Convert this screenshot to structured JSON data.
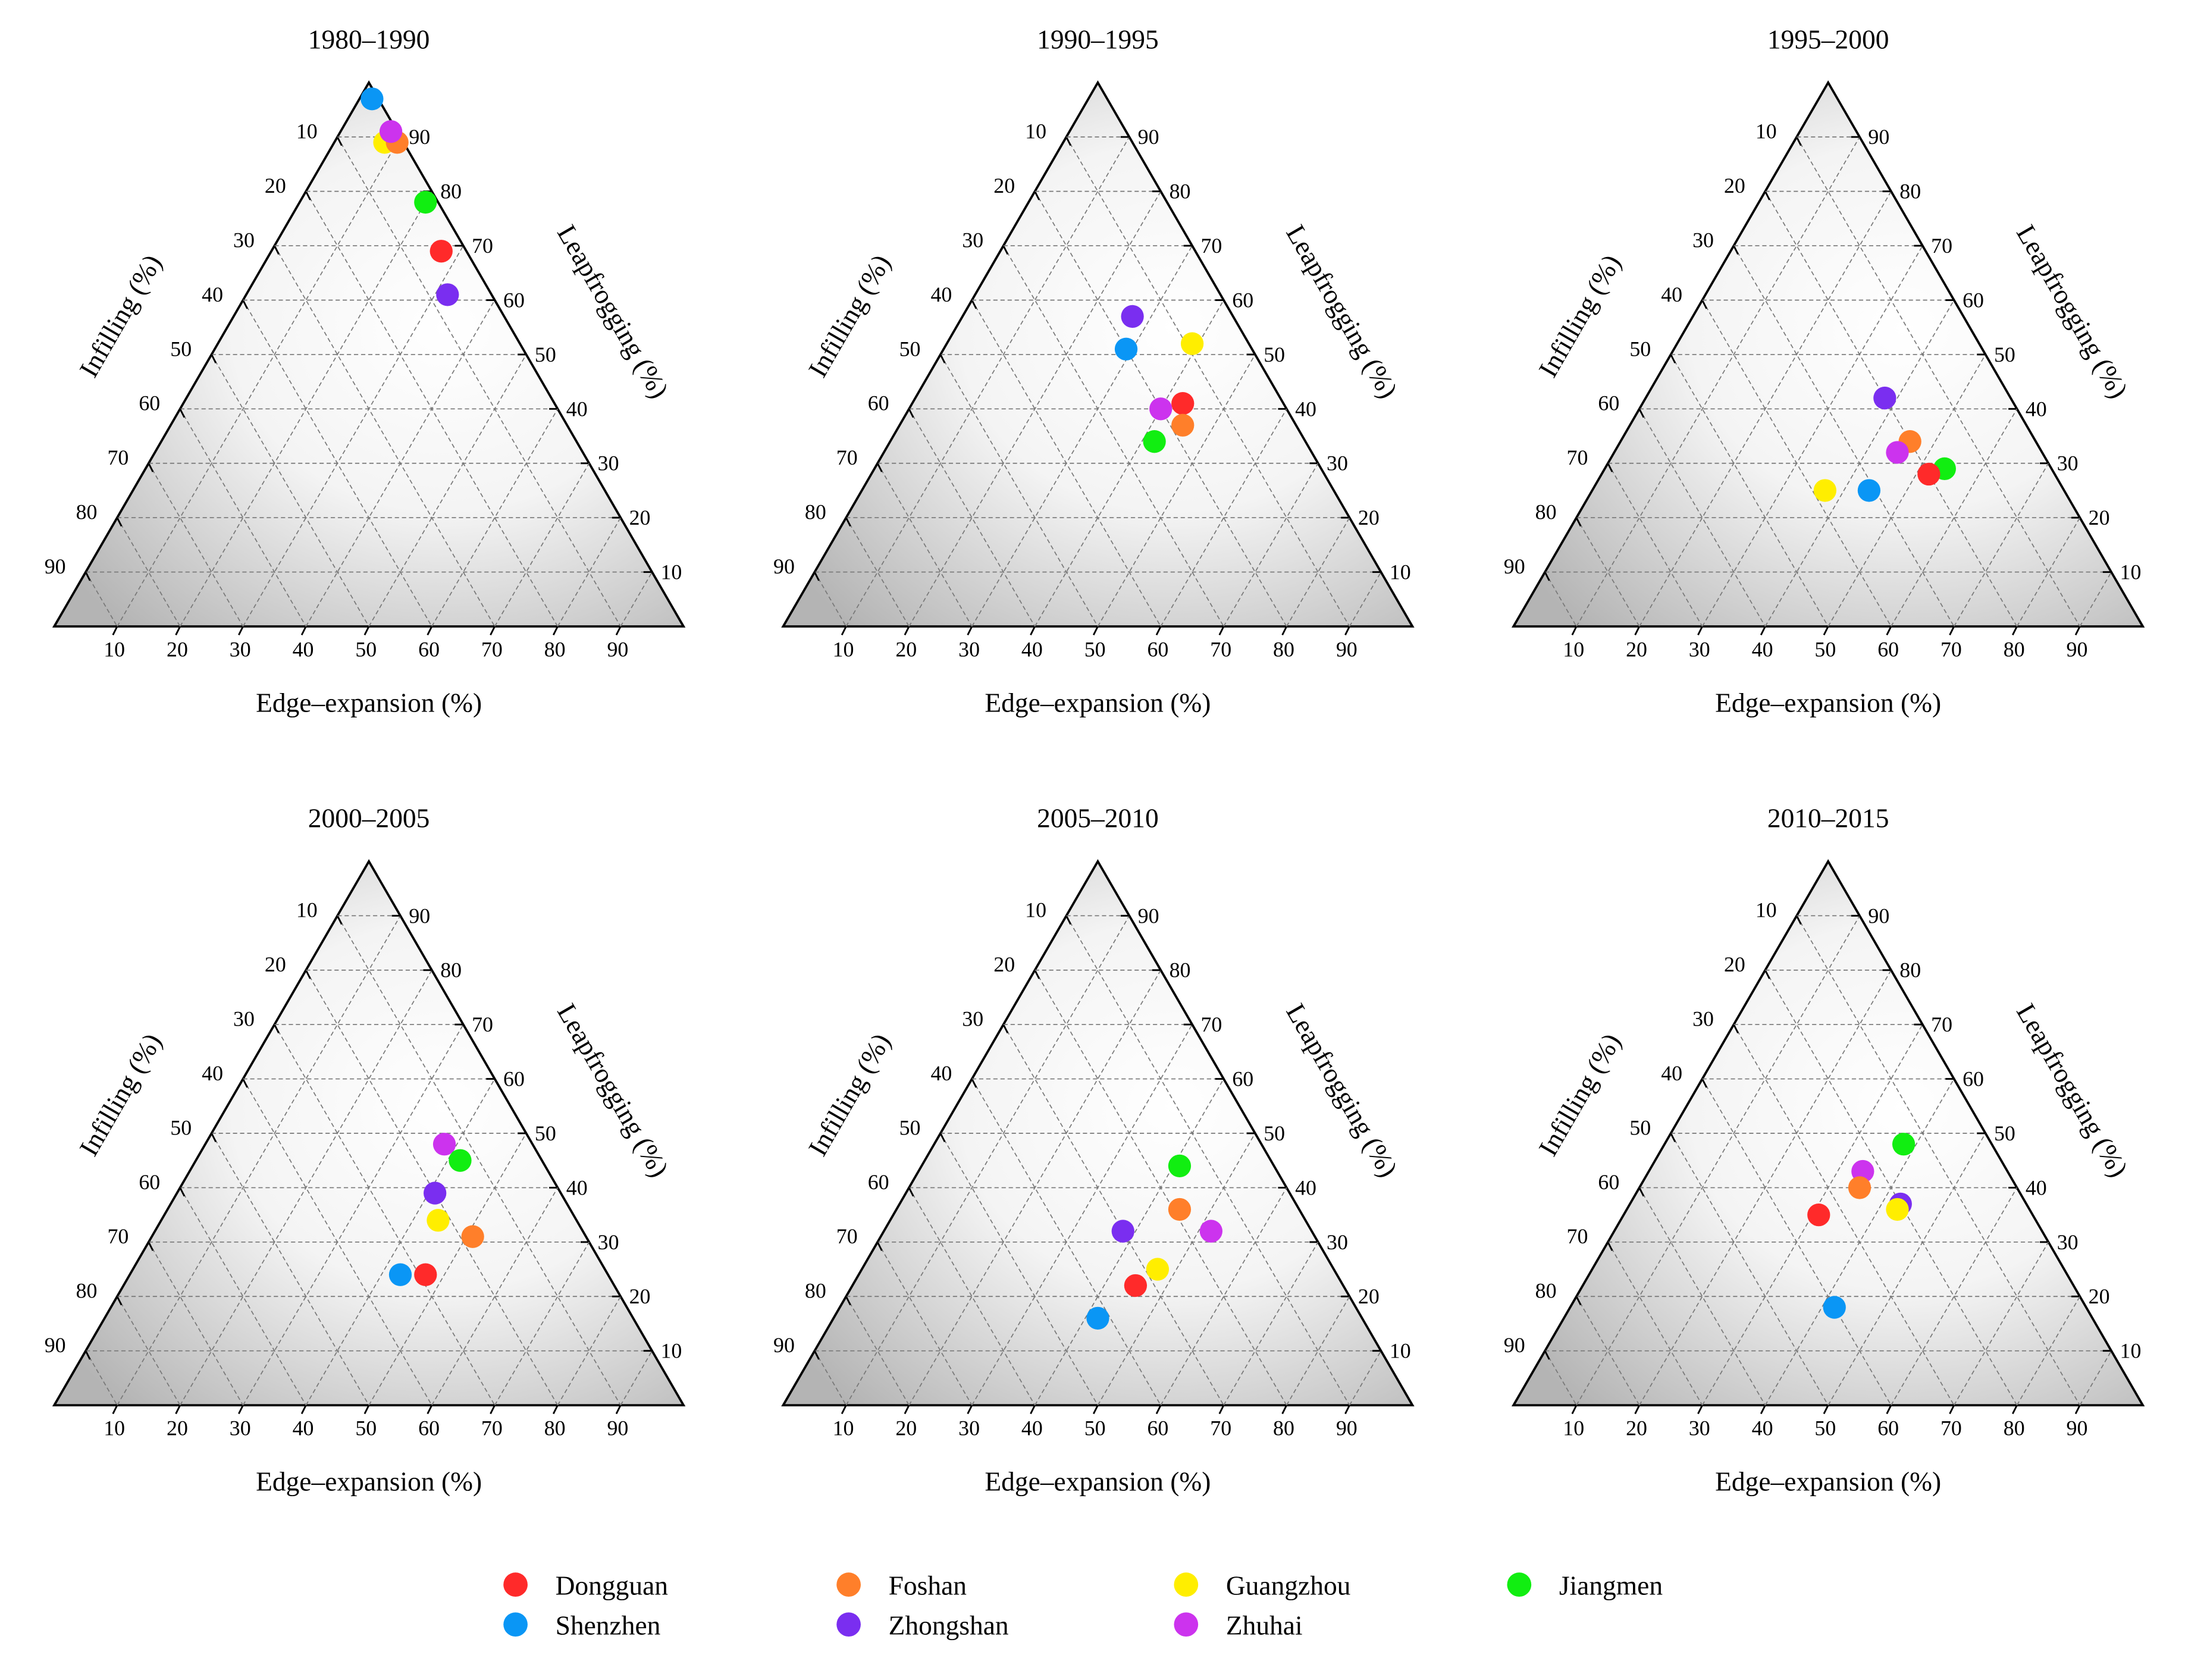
{
  "chart_data": {
    "type": "scatter",
    "subtype": "ternary",
    "axes": {
      "bottom": "Edge–expansion (%)",
      "left": "Infilling (%)",
      "right": "Leapfrogging (%)"
    },
    "ticks": [
      10,
      20,
      30,
      40,
      50,
      60,
      70,
      80,
      90
    ],
    "grid": true,
    "legend_placement": "bottom-center",
    "series_names": [
      "Dongguan",
      "Foshan",
      "Guangzhou",
      "Jiangmen",
      "Shenzhen",
      "Zhongshan",
      "Zhuhai"
    ],
    "colors": {
      "Dongguan": "#ff2a2a",
      "Foshan": "#ff7f2a",
      "Guangzhou": "#ffee00",
      "Jiangmen": "#11ee11",
      "Shenzhen": "#0a96f5",
      "Zhongshan": "#7a2ef0",
      "Zhuhai": "#cc33ee"
    },
    "legend": [
      {
        "name": "Dongguan"
      },
      {
        "name": "Foshan"
      },
      {
        "name": "Guangzhou"
      },
      {
        "name": "Jiangmen"
      },
      {
        "name": "Shenzhen"
      },
      {
        "name": "Zhongshan"
      },
      {
        "name": "Zhuhai"
      }
    ],
    "panels": [
      {
        "title": "1980–1990",
        "points": [
          {
            "city": "Shenzhen",
            "edge": 2,
            "infilling": 1,
            "leapfrogging": 97
          },
          {
            "city": "Guangzhou",
            "edge": 8,
            "infilling": 3,
            "leapfrogging": 89
          },
          {
            "city": "Foshan",
            "edge": 10,
            "infilling": 1,
            "leapfrogging": 89
          },
          {
            "city": "Zhuhai",
            "edge": 8,
            "infilling": 1,
            "leapfrogging": 91
          },
          {
            "city": "Jiangmen",
            "edge": 20,
            "infilling": 2,
            "leapfrogging": 78
          },
          {
            "city": "Dongguan",
            "edge": 27,
            "infilling": 4,
            "leapfrogging": 69
          },
          {
            "city": "Zhongshan",
            "edge": 32,
            "infilling": 7,
            "leapfrogging": 61
          }
        ]
      },
      {
        "title": "1990–1995",
        "points": [
          {
            "city": "Zhongshan",
            "edge": 27,
            "infilling": 16,
            "leapfrogging": 57
          },
          {
            "city": "Shenzhen",
            "edge": 29,
            "infilling": 20,
            "leapfrogging": 51
          },
          {
            "city": "Guangzhou",
            "edge": 39,
            "infilling": 9,
            "leapfrogging": 52
          },
          {
            "city": "Dongguan",
            "edge": 43,
            "infilling": 16,
            "leapfrogging": 41
          },
          {
            "city": "Zhuhai",
            "edge": 40,
            "infilling": 20,
            "leapfrogging": 40
          },
          {
            "city": "Foshan",
            "edge": 45,
            "infilling": 18,
            "leapfrogging": 37
          },
          {
            "city": "Jiangmen",
            "edge": 42,
            "infilling": 24,
            "leapfrogging": 34
          }
        ]
      },
      {
        "title": "1995–2000",
        "points": [
          {
            "city": "Zhongshan",
            "edge": 38,
            "infilling": 20,
            "leapfrogging": 42
          },
          {
            "city": "Foshan",
            "edge": 46,
            "infilling": 20,
            "leapfrogging": 34
          },
          {
            "city": "Zhuhai",
            "edge": 45,
            "infilling": 23,
            "leapfrogging": 32
          },
          {
            "city": "Jiangmen",
            "edge": 54,
            "infilling": 17,
            "leapfrogging": 29
          },
          {
            "city": "Dongguan",
            "edge": 52,
            "infilling": 20,
            "leapfrogging": 28
          },
          {
            "city": "Shenzhen",
            "edge": 44,
            "infilling": 31,
            "leapfrogging": 25
          },
          {
            "city": "Guangzhou",
            "edge": 37,
            "infilling": 38,
            "leapfrogging": 25
          }
        ]
      },
      {
        "title": "2000–2005",
        "points": [
          {
            "city": "Zhuhai",
            "edge": 38,
            "infilling": 14,
            "leapfrogging": 48
          },
          {
            "city": "Jiangmen",
            "edge": 42,
            "infilling": 13,
            "leapfrogging": 45
          },
          {
            "city": "Zhongshan",
            "edge": 41,
            "infilling": 20,
            "leapfrogging": 39
          },
          {
            "city": "Guangzhou",
            "edge": 44,
            "infilling": 22,
            "leapfrogging": 34
          },
          {
            "city": "Foshan",
            "edge": 51,
            "infilling": 18,
            "leapfrogging": 31
          },
          {
            "city": "Shenzhen",
            "edge": 43,
            "infilling": 33,
            "leapfrogging": 24
          },
          {
            "city": "Dongguan",
            "edge": 47,
            "infilling": 29,
            "leapfrogging": 24
          }
        ]
      },
      {
        "title": "2005–2010",
        "points": [
          {
            "city": "Jiangmen",
            "edge": 41,
            "infilling": 15,
            "leapfrogging": 44
          },
          {
            "city": "Foshan",
            "edge": 45,
            "infilling": 19,
            "leapfrogging": 36
          },
          {
            "city": "Zhongshan",
            "edge": 38,
            "infilling": 30,
            "leapfrogging": 32
          },
          {
            "city": "Zhuhai",
            "edge": 52,
            "infilling": 16,
            "leapfrogging": 32
          },
          {
            "city": "Guangzhou",
            "edge": 47,
            "infilling": 28,
            "leapfrogging": 25
          },
          {
            "city": "Dongguan",
            "edge": 45,
            "infilling": 33,
            "leapfrogging": 22
          },
          {
            "city": "Shenzhen",
            "edge": 42,
            "infilling": 42,
            "leapfrogging": 16
          }
        ]
      },
      {
        "title": "2010–2015",
        "points": [
          {
            "city": "Jiangmen",
            "edge": 38,
            "infilling": 14,
            "leapfrogging": 48
          },
          {
            "city": "Zhuhai",
            "edge": 34,
            "infilling": 23,
            "leapfrogging": 43
          },
          {
            "city": "Foshan",
            "edge": 35,
            "infilling": 25,
            "leapfrogging": 40
          },
          {
            "city": "Zhongshan",
            "edge": 43,
            "infilling": 20,
            "leapfrogging": 37
          },
          {
            "city": "Guangzhou",
            "edge": 43,
            "infilling": 21,
            "leapfrogging": 36
          },
          {
            "city": "Dongguan",
            "edge": 31,
            "infilling": 34,
            "leapfrogging": 35
          },
          {
            "city": "Shenzhen",
            "edge": 42,
            "infilling": 40,
            "leapfrogging": 18
          }
        ]
      }
    ]
  }
}
